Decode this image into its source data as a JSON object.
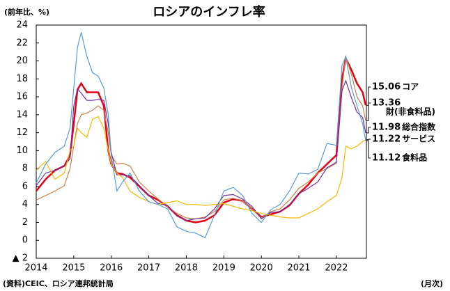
{
  "chart_data": {
    "type": "line",
    "title": "ロシアのインフレ率",
    "y_label": "(前年比、%)",
    "source": "(資料)CEIC、ロシア連邦統計局",
    "frequency": "(月次)",
    "x": [
      2014.0,
      2014.25,
      2014.5,
      2014.75,
      2014.9,
      2015.0,
      2015.1,
      2015.2,
      2015.35,
      2015.5,
      2015.65,
      2015.8,
      2015.92,
      2016.0,
      2016.15,
      2016.3,
      2016.5,
      2016.75,
      2017.0,
      2017.25,
      2017.5,
      2017.75,
      2018.0,
      2018.25,
      2018.5,
      2018.75,
      2019.0,
      2019.25,
      2019.5,
      2019.75,
      2020.0,
      2020.25,
      2020.5,
      2020.75,
      2021.0,
      2021.25,
      2021.5,
      2021.75,
      2022.0,
      2022.15,
      2022.25,
      2022.4,
      2022.55,
      2022.7,
      2022.78
    ],
    "series": [
      {
        "name": "コア",
        "color": "#e60012",
        "values": [
          5.5,
          6.8,
          7.8,
          8.3,
          9.5,
          13,
          16.8,
          17.5,
          16.5,
          16.5,
          16.5,
          15,
          10,
          8.5,
          7.5,
          7.4,
          7,
          6,
          5,
          4.5,
          3.8,
          2.8,
          2.2,
          2.0,
          2.2,
          2.8,
          4.2,
          4.6,
          4.4,
          3.5,
          2.6,
          2.9,
          3.2,
          3.9,
          5.2,
          6.2,
          7.5,
          8.5,
          9.5,
          18,
          20.3,
          19,
          17.5,
          16.5,
          15.06
        ]
      },
      {
        "name": "財(非食料品)",
        "color": "#c9844e",
        "values": [
          4.5,
          5.0,
          5.5,
          6.1,
          8,
          10.5,
          13,
          14,
          14.2,
          14.5,
          15,
          14.5,
          12,
          9.5,
          8.5,
          8.6,
          8.3,
          6.5,
          5.5,
          4.6,
          3.8,
          3.0,
          2.5,
          2.4,
          2.6,
          3.2,
          4.5,
          4.7,
          4.4,
          3.5,
          2.5,
          3.2,
          3.5,
          4.5,
          5.8,
          6.5,
          7.5,
          8.0,
          8.6,
          17,
          20.5,
          18.5,
          16,
          15,
          13.36
        ]
      },
      {
        "name": "総合指数",
        "color": "#7030a0",
        "values": [
          6.1,
          7.5,
          7.8,
          8.3,
          9.1,
          15,
          16.9,
          16.4,
          15.6,
          15.6,
          15.7,
          15.6,
          13,
          9.8,
          7.3,
          7.3,
          7.2,
          6.1,
          5.0,
          4.1,
          3.9,
          2.7,
          2.2,
          2.4,
          2.5,
          3.5,
          5.0,
          5.1,
          4.6,
          3.8,
          2.4,
          3.1,
          3.2,
          4.0,
          5.2,
          5.8,
          6.5,
          8.1,
          8.7,
          16.7,
          17.8,
          15.9,
          14.3,
          13.7,
          11.98
        ]
      },
      {
        "name": "サービス",
        "color": "#f5b800",
        "values": [
          7.8,
          8.8,
          6.8,
          7.5,
          10,
          10.5,
          12.5,
          12,
          11.5,
          13.5,
          13.8,
          12.5,
          10,
          8.5,
          7.5,
          7.0,
          5.5,
          4.8,
          4.3,
          4.0,
          4.2,
          4.4,
          4.0,
          4.0,
          3.9,
          4.0,
          4.1,
          3.8,
          3.5,
          3.3,
          3.0,
          2.8,
          2.6,
          2.5,
          2.5,
          3.0,
          3.5,
          4.3,
          5.0,
          7.0,
          10.5,
          10.2,
          10.5,
          11.0,
          11.22
        ]
      },
      {
        "name": "食料品",
        "color": "#5b9bd5",
        "values": [
          6.4,
          8.5,
          9.8,
          10.5,
          12.5,
          17,
          21.5,
          23.2,
          20.5,
          18.7,
          18.3,
          17,
          14,
          9.5,
          5.5,
          6.5,
          7.5,
          5.5,
          4.3,
          4.0,
          3.5,
          1.5,
          1.0,
          0.8,
          0.3,
          2.8,
          5.5,
          5.9,
          5.0,
          3.0,
          2.0,
          3.4,
          4.0,
          5.5,
          7.5,
          7.4,
          7.9,
          10.8,
          10.6,
          19.5,
          20.5,
          17.0,
          15.0,
          13.0,
          11.12
        ]
      }
    ],
    "xlim": [
      2014,
      2022.8
    ],
    "xticks": [
      2014,
      2015,
      2016,
      2017,
      2018,
      2019,
      2020,
      2021,
      2022
    ],
    "ylim": [
      -2,
      24
    ],
    "yticks": [
      {
        "value": -2,
        "label": "▲ 2"
      },
      0,
      2,
      4,
      6,
      8,
      10,
      12,
      14,
      16,
      18,
      20,
      22,
      24
    ]
  }
}
